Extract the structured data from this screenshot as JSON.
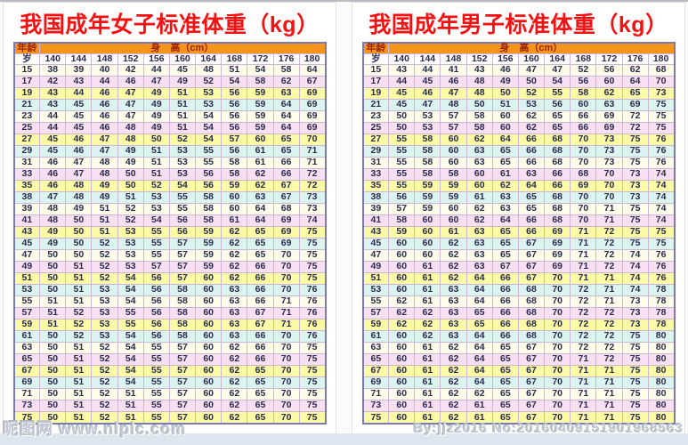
{
  "page": {
    "watermark_left": "昵图网 www.nipic.com",
    "watermark_right": "By:jjz2016 No:20160409151901968563"
  },
  "header": {
    "age_label": "年龄",
    "age_unit": "岁",
    "height_label": "身　高（cm）"
  },
  "heights": [
    140,
    144,
    148,
    152,
    156,
    160,
    164,
    168,
    172,
    176,
    180
  ],
  "colors": {
    "title_red": "#f31111",
    "header_orange": "#f7941d",
    "header_text_maroon": "#992400",
    "row_cream": "#fdfdea",
    "row_pink": "#f8dff2",
    "row_yellow": "#fbfba6",
    "row_cyan": "#dcf4f0",
    "table_border_purple": "#7a7ab8",
    "cell_border_lavender": "#ccb6d6",
    "bottom_strip": "#dde6ee"
  },
  "tables": [
    {
      "title": "我国成年女子标准体重（kg）",
      "rows": [
        [
          15,
          38,
          39,
          40,
          42,
          44,
          45,
          48,
          51,
          54,
          58,
          64
        ],
        [
          17,
          42,
          43,
          44,
          46,
          47,
          49,
          52,
          54,
          58,
          62,
          67
        ],
        [
          19,
          43,
          44,
          46,
          47,
          49,
          51,
          53,
          56,
          59,
          63,
          69
        ],
        [
          21,
          43,
          45,
          46,
          47,
          49,
          51,
          53,
          56,
          59,
          64,
          69
        ],
        [
          23,
          44,
          45,
          46,
          47,
          49,
          51,
          54,
          56,
          59,
          64,
          69
        ],
        [
          25,
          44,
          45,
          46,
          48,
          49,
          51,
          54,
          56,
          59,
          64,
          69
        ],
        [
          27,
          45,
          46,
          47,
          48,
          50,
          52,
          54,
          57,
          60,
          65,
          70
        ],
        [
          29,
          45,
          46,
          47,
          49,
          51,
          53,
          55,
          56,
          61,
          65,
          71
        ],
        [
          31,
          46,
          47,
          48,
          49,
          51,
          53,
          55,
          58,
          61,
          66,
          71
        ],
        [
          33,
          46,
          47,
          48,
          50,
          51,
          53,
          56,
          58,
          62,
          66,
          72
        ],
        [
          35,
          46,
          48,
          49,
          50,
          52,
          54,
          56,
          59,
          62,
          67,
          72
        ],
        [
          38,
          47,
          48,
          49,
          51,
          53,
          55,
          58,
          60,
          63,
          67,
          73
        ],
        [
          39,
          48,
          49,
          51,
          52,
          53,
          55,
          58,
          60,
          64,
          68,
          73
        ],
        [
          41,
          48,
          50,
          51,
          52,
          54,
          56,
          58,
          61,
          64,
          69,
          74
        ],
        [
          43,
          49,
          50,
          51,
          53,
          55,
          56,
          59,
          62,
          65,
          69,
          75
        ],
        [
          45,
          49,
          50,
          52,
          53,
          55,
          57,
          59,
          62,
          65,
          69,
          75
        ],
        [
          47,
          50,
          50,
          52,
          53,
          55,
          57,
          59,
          62,
          65,
          70,
          75
        ],
        [
          49,
          50,
          51,
          52,
          53,
          57,
          57,
          59,
          62,
          66,
          70,
          75
        ],
        [
          51,
          50,
          51,
          52,
          54,
          56,
          57,
          60,
          62,
          66,
          70,
          75
        ],
        [
          53,
          50,
          51,
          53,
          54,
          56,
          58,
          60,
          63,
          66,
          70,
          76
        ],
        [
          55,
          51,
          51,
          53,
          54,
          56,
          58,
          60,
          63,
          66,
          71,
          76
        ],
        [
          57,
          51,
          52,
          53,
          55,
          56,
          58,
          60,
          63,
          67,
          71,
          76
        ],
        [
          59,
          51,
          52,
          53,
          55,
          56,
          58,
          60,
          63,
          67,
          71,
          76
        ],
        [
          61,
          50,
          52,
          53,
          54,
          56,
          58,
          60,
          63,
          66,
          70,
          76
        ],
        [
          63,
          50,
          51,
          52,
          54,
          55,
          57,
          60,
          62,
          66,
          70,
          75
        ],
        [
          65,
          50,
          51,
          52,
          54,
          55,
          57,
          60,
          62,
          66,
          70,
          75
        ],
        [
          67,
          50,
          51,
          52,
          54,
          55,
          57,
          60,
          62,
          65,
          70,
          75
        ],
        [
          69,
          50,
          51,
          52,
          54,
          55,
          57,
          60,
          62,
          65,
          70,
          75
        ],
        [
          71,
          50,
          51,
          52,
          51,
          55,
          57,
          60,
          62,
          65,
          70,
          75
        ],
        [
          73,
          50,
          51,
          52,
          51,
          55,
          57,
          60,
          62,
          65,
          70,
          75
        ],
        [
          75,
          50,
          51,
          52,
          51,
          55,
          57,
          60,
          62,
          65,
          70,
          75
        ]
      ]
    },
    {
      "title": "我国成年男子标准体重（kg）",
      "rows": [
        [
          15,
          43,
          44,
          41,
          43,
          46,
          47,
          47,
          52,
          56,
          62,
          68
        ],
        [
          17,
          44,
          45,
          46,
          48,
          49,
          50,
          54,
          56,
          60,
          64,
          70
        ],
        [
          19,
          45,
          46,
          47,
          48,
          50,
          52,
          55,
          58,
          62,
          65,
          73
        ],
        [
          21,
          45,
          47,
          48,
          50,
          51,
          53,
          56,
          60,
          63,
          69,
          75
        ],
        [
          23,
          50,
          53,
          57,
          58,
          60,
          62,
          65,
          66,
          69,
          72,
          75
        ],
        [
          25,
          50,
          53,
          57,
          58,
          60,
          62,
          65,
          66,
          69,
          72,
          75
        ],
        [
          27,
          55,
          58,
          60,
          62,
          64,
          66,
          68,
          70,
          73,
          75,
          76
        ],
        [
          29,
          55,
          58,
          60,
          63,
          65,
          66,
          68,
          70,
          73,
          75,
          76
        ],
        [
          31,
          55,
          58,
          60,
          63,
          65,
          66,
          68,
          70,
          73,
          75,
          76
        ],
        [
          33,
          55,
          58,
          58,
          60,
          61,
          63,
          66,
          68,
          70,
          73,
          74
        ],
        [
          35,
          55,
          59,
          59,
          60,
          62,
          64,
          66,
          69,
          70,
          73,
          74
        ],
        [
          38,
          56,
          59,
          59,
          61,
          63,
          65,
          68,
          70,
          70,
          73,
          74
        ],
        [
          39,
          57,
          59,
          60,
          62,
          63,
          65,
          68,
          70,
          71,
          75,
          74
        ],
        [
          41,
          58,
          60,
          60,
          62,
          64,
          66,
          68,
          70,
          71,
          75,
          74
        ],
        [
          43,
          59,
          60,
          61,
          63,
          65,
          66,
          69,
          71,
          72,
          75,
          75
        ],
        [
          45,
          60,
          60,
          62,
          63,
          65,
          67,
          69,
          71,
          72,
          75,
          75
        ],
        [
          47,
          60,
          60,
          62,
          63,
          65,
          67,
          69,
          71,
          72,
          74,
          76
        ],
        [
          49,
          60,
          61,
          62,
          63,
          67,
          67,
          69,
          71,
          72,
          74,
          76
        ],
        [
          51,
          60,
          61,
          62,
          64,
          66,
          67,
          70,
          71,
          71,
          74,
          76
        ],
        [
          53,
          60,
          61,
          63,
          64,
          66,
          68,
          70,
          72,
          71,
          74,
          78
        ],
        [
          55,
          62,
          61,
          63,
          64,
          66,
          68,
          70,
          72,
          71,
          73,
          78
        ],
        [
          57,
          62,
          62,
          63,
          65,
          66,
          68,
          70,
          72,
          72,
          73,
          78
        ],
        [
          59,
          62,
          62,
          63,
          65,
          66,
          68,
          70,
          72,
          72,
          73,
          78
        ],
        [
          61,
          60,
          62,
          63,
          64,
          66,
          68,
          70,
          72,
          72,
          75,
          80
        ],
        [
          63,
          60,
          61,
          62,
          64,
          65,
          67,
          70,
          72,
          72,
          75,
          80
        ],
        [
          65,
          60,
          61,
          62,
          64,
          65,
          67,
          70,
          71,
          72,
          75,
          80
        ],
        [
          67,
          60,
          61,
          62,
          64,
          65,
          67,
          70,
          71,
          71,
          75,
          80
        ],
        [
          69,
          60,
          61,
          62,
          64,
          65,
          67,
          70,
          71,
          71,
          75,
          80
        ],
        [
          71,
          60,
          61,
          62,
          62,
          65,
          67,
          70,
          71,
          71,
          75,
          80
        ],
        [
          73,
          60,
          61,
          62,
          61,
          65,
          67,
          70,
          71,
          71,
          75,
          80
        ],
        [
          75,
          60,
          61,
          62,
          61,
          65,
          67,
          70,
          71,
          71,
          75,
          80
        ]
      ]
    }
  ]
}
